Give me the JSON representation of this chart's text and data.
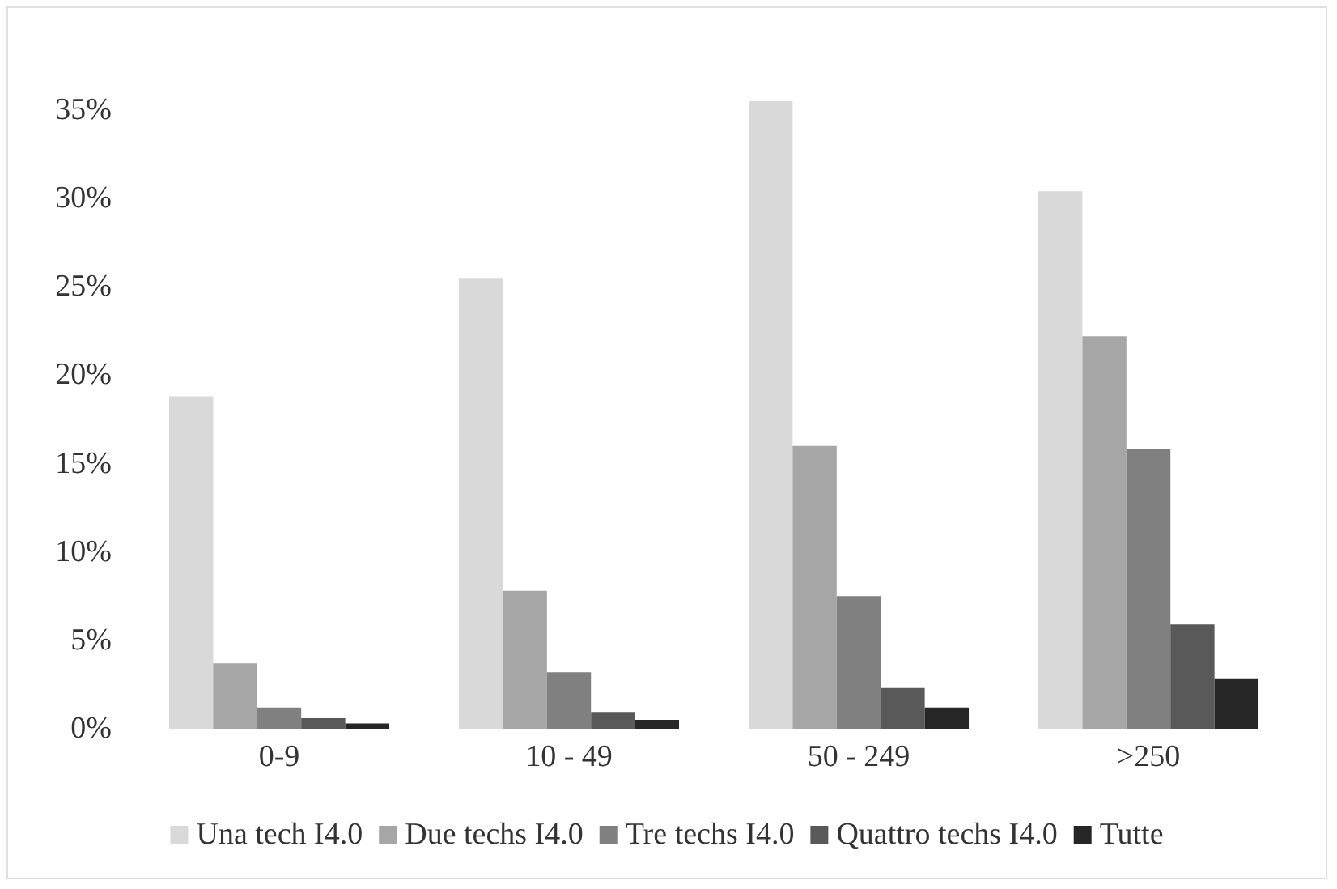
{
  "chart_data": {
    "type": "bar",
    "categories": [
      "0-9",
      "10 - 49",
      "50 - 249",
      ">250"
    ],
    "series": [
      {
        "name": "Una tech I4.0",
        "color": "#d9d9d9",
        "values": [
          18.8,
          25.5,
          35.5,
          30.4
        ]
      },
      {
        "name": "Due techs I4.0",
        "color": "#a6a6a6",
        "values": [
          3.7,
          7.8,
          16.0,
          22.2
        ]
      },
      {
        "name": "Tre techs I4.0",
        "color": "#808080",
        "values": [
          1.2,
          3.2,
          7.5,
          15.8
        ]
      },
      {
        "name": "Quattro techs I4.0",
        "color": "#595959",
        "values": [
          0.6,
          0.9,
          2.3,
          5.9
        ]
      },
      {
        "name": "Tutte",
        "color": "#262626",
        "values": [
          0.3,
          0.5,
          1.2,
          2.8
        ]
      }
    ],
    "ylim": [
      0,
      36
    ],
    "yticks": [
      {
        "value": 0,
        "label": "0%"
      },
      {
        "value": 5,
        "label": "5%"
      },
      {
        "value": 10,
        "label": "10%"
      },
      {
        "value": 15,
        "label": "15%"
      },
      {
        "value": 20,
        "label": "20%"
      },
      {
        "value": 25,
        "label": "25%"
      },
      {
        "value": 30,
        "label": "30%"
      },
      {
        "value": 35,
        "label": "35%"
      }
    ],
    "grid": false,
    "legend": "bottom"
  }
}
